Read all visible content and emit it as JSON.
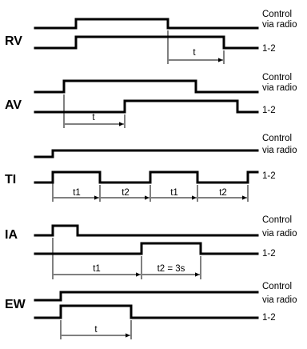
{
  "labels": {
    "control_line1": "Control",
    "control_line2": "via radio",
    "output": "1-2"
  },
  "modes": [
    {
      "name": "RV",
      "intervals": [
        "t"
      ]
    },
    {
      "name": "AV",
      "intervals": [
        "t"
      ]
    },
    {
      "name": "TI",
      "intervals": [
        "t1",
        "t2",
        "t1",
        "t2"
      ]
    },
    {
      "name": "IA",
      "intervals": [
        "t1",
        "t2 = 3s"
      ]
    },
    {
      "name": "EW",
      "intervals": [
        "t"
      ]
    }
  ]
}
